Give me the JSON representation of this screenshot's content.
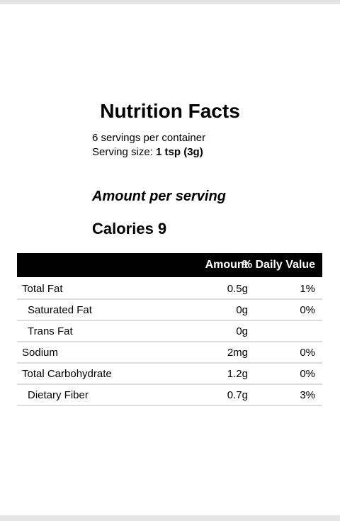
{
  "header": {
    "title": "Nutrition Facts",
    "servings": "6 servings per container",
    "serving_size_label": "Serving size:",
    "serving_size_value": "1 tsp (3g)"
  },
  "amount_per_serving": "Amount per serving",
  "calories": "Calories 9",
  "table": {
    "columns": [
      "Amount",
      "% Daily Value"
    ],
    "rows": [
      {
        "name": "Total Fat",
        "amount": "0.5g",
        "daily_value": "1%",
        "indented": false
      },
      {
        "name": "Saturated Fat",
        "amount": "0g",
        "daily_value": "0%",
        "indented": true
      },
      {
        "name": "Trans Fat",
        "amount": "0g",
        "indented": true
      },
      {
        "name": "Sodium",
        "amount": "2mg",
        "daily_value": "0%",
        "indented": false
      },
      {
        "name": "Total Carbohydrate",
        "amount": "1.2g",
        "daily_value": "0%",
        "indented": false
      },
      {
        "name": "Dietary Fiber",
        "amount": "0.7g",
        "daily_value": "3%",
        "indented": true
      }
    ]
  }
}
